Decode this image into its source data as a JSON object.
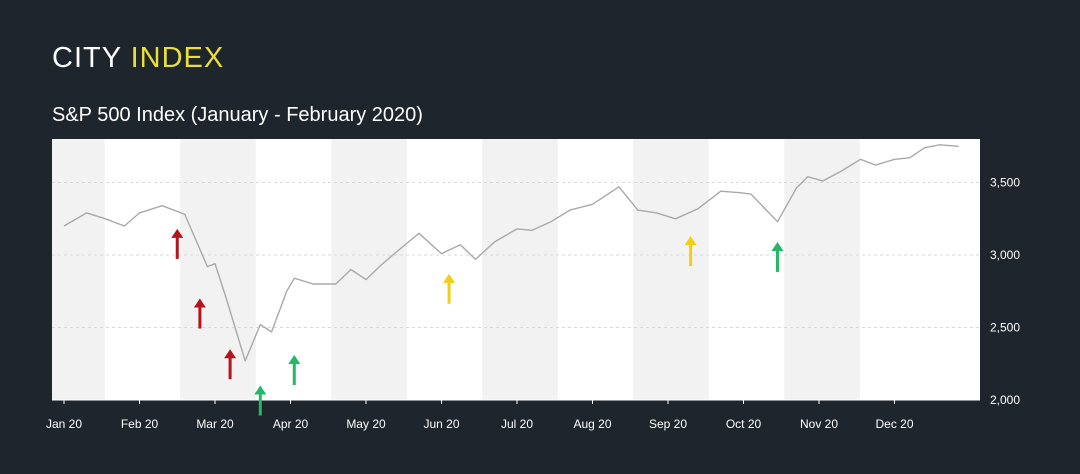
{
  "brand": {
    "word1": "CITY",
    "word2": "INDEX",
    "color1": "#ffffff",
    "color2": "#e8de3c"
  },
  "colors": {
    "background": "#1f252c",
    "plot": "#ffffff",
    "band": "#f2f2f2",
    "line": "#a9a9a9",
    "red": "#b3151b",
    "green": "#23b865",
    "yellow": "#f2cf16"
  },
  "chart_data": {
    "type": "line",
    "title": "S&P 500 Index (January - February 2020)",
    "x_tick_labels": [
      "Jan 20",
      "Feb 20",
      "Mar 20",
      "Apr 20",
      "May 20",
      "Jun 20",
      "Jul 20",
      "Aug 20",
      "Sep 20",
      "Oct 20",
      "Nov 20",
      "Dec 20"
    ],
    "y_ticks": [
      2000,
      2500,
      3000,
      3500
    ],
    "y_tick_labels": [
      "2,000",
      "2,500",
      "3,000",
      "3,500"
    ],
    "ylim": [
      2000,
      3800
    ],
    "y_axis_side": "right",
    "grid": "horizontal dashed",
    "series": [
      {
        "x": [
          0,
          0.3,
          0.55,
          0.8,
          1.0,
          1.3,
          1.6,
          1.9,
          2.0,
          2.15,
          2.4,
          2.6,
          2.75,
          2.95,
          3.05,
          3.3,
          3.6,
          3.8,
          4.0,
          4.2,
          4.4,
          4.7,
          5.0,
          5.25,
          5.45,
          5.7,
          6.0,
          6.2,
          6.45,
          6.7,
          7.0,
          7.35,
          7.6,
          7.85,
          8.1,
          8.4,
          8.7,
          8.95,
          9.1,
          9.45,
          9.7,
          9.85,
          10.05,
          10.3,
          10.55,
          10.75,
          11.0,
          11.2,
          11.4,
          11.6,
          11.85
        ],
        "y": [
          3200,
          3290,
          3250,
          3200,
          3290,
          3340,
          3280,
          2920,
          2940,
          2700,
          2270,
          2520,
          2470,
          2750,
          2840,
          2800,
          2800,
          2900,
          2830,
          2930,
          3020,
          3150,
          3010,
          3070,
          2970,
          3090,
          3180,
          3170,
          3230,
          3310,
          3350,
          3470,
          3310,
          3290,
          3250,
          3320,
          3440,
          3430,
          3420,
          3230,
          3460,
          3540,
          3510,
          3580,
          3660,
          3620,
          3660,
          3670,
          3740,
          3760,
          3750
        ]
      }
    ],
    "arrows": [
      {
        "x": 1.5,
        "y": 3180,
        "direction": "up",
        "color": "red"
      },
      {
        "x": 1.8,
        "y": 2700,
        "direction": "up",
        "color": "red"
      },
      {
        "x": 2.2,
        "y": 2350,
        "direction": "up",
        "color": "red"
      },
      {
        "x": 2.6,
        "y": 2100,
        "direction": "up",
        "color": "green"
      },
      {
        "x": 3.05,
        "y": 2310,
        "direction": "up",
        "color": "green"
      },
      {
        "x": 5.1,
        "y": 2870,
        "direction": "up",
        "color": "yellow"
      },
      {
        "x": 8.3,
        "y": 3130,
        "direction": "up",
        "color": "yellow"
      },
      {
        "x": 9.45,
        "y": 3090,
        "direction": "up",
        "color": "green"
      }
    ]
  }
}
